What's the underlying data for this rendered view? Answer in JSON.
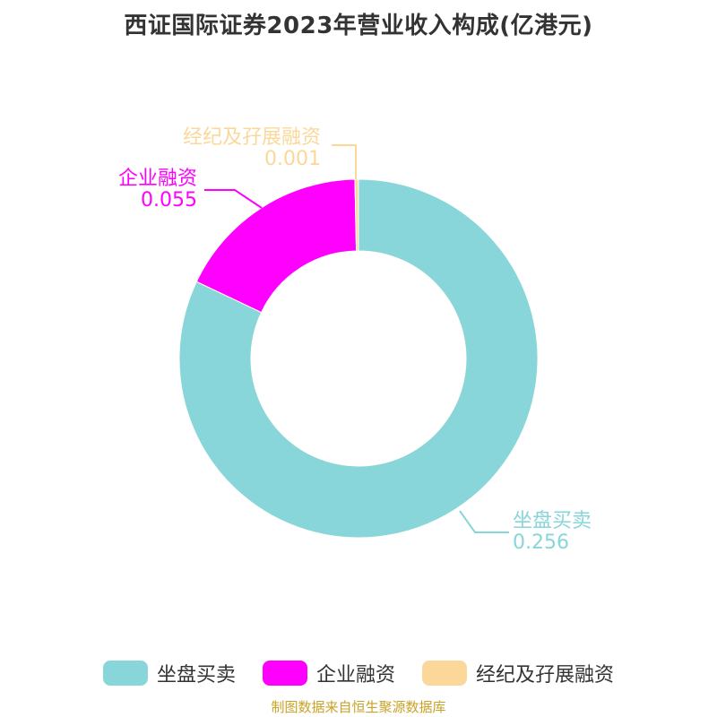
{
  "chart_data": {
    "type": "pie",
    "title": "西证国际证券2023年营业收入构成(亿港元)",
    "donut": true,
    "slices": [
      {
        "name": "坐盘买卖",
        "value": 0.256,
        "value_label": "0.256",
        "color": "#88d6d9"
      },
      {
        "name": "企业融资",
        "value": 0.055,
        "value_label": "0.055",
        "color": "#ff00ff"
      },
      {
        "name": "经纪及孖展融资",
        "value": 0.001,
        "value_label": "0.001",
        "color": "#fbd89a"
      }
    ],
    "legend_position": "bottom"
  },
  "footer": {
    "source": "制图数据来自恒生聚源数据库"
  }
}
